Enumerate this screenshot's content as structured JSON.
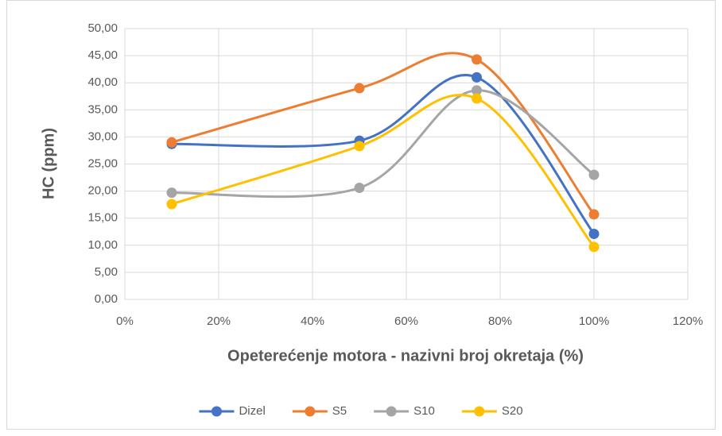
{
  "chart_data": {
    "type": "scatter",
    "x_label": "Opeterećenje motora - nazivni broj okretaja (%)",
    "y_label": "HC (ppm)",
    "x": [
      10,
      50,
      75,
      100
    ],
    "series": [
      {
        "name": "Dizel",
        "color": "#4472c4",
        "values": [
          28.7,
          29.3,
          41.0,
          12.1
        ]
      },
      {
        "name": "S5",
        "color": "#ed7d31",
        "values": [
          29.0,
          39.0,
          44.3,
          15.7
        ]
      },
      {
        "name": "S10",
        "color": "#a5a5a5",
        "values": [
          19.7,
          20.6,
          38.6,
          23.0
        ]
      },
      {
        "name": "S20",
        "color": "#ffc000",
        "values": [
          17.6,
          28.3,
          37.1,
          9.7
        ]
      }
    ],
    "smooth": true,
    "xlim": [
      0,
      120
    ],
    "xticks": [
      {
        "value": 0,
        "label": "0%"
      },
      {
        "value": 20,
        "label": "20%"
      },
      {
        "value": 40,
        "label": "40%"
      },
      {
        "value": 60,
        "label": "60%"
      },
      {
        "value": 80,
        "label": "80%"
      },
      {
        "value": 100,
        "label": "100%"
      },
      {
        "value": 120,
        "label": "120%"
      }
    ],
    "ylim": [
      0,
      50
    ],
    "yticks": [
      {
        "value": 0,
        "label": "0,00"
      },
      {
        "value": 5,
        "label": "5,00"
      },
      {
        "value": 10,
        "label": "10,00"
      },
      {
        "value": 15,
        "label": "15,00"
      },
      {
        "value": 20,
        "label": "20,00"
      },
      {
        "value": 25,
        "label": "25,00"
      },
      {
        "value": 30,
        "label": "30,00"
      },
      {
        "value": 35,
        "label": "35,00"
      },
      {
        "value": 40,
        "label": "40,00"
      },
      {
        "value": 45,
        "label": "45,00"
      },
      {
        "value": 50,
        "label": "50,00"
      }
    ],
    "grid": true,
    "legend": "bottom"
  }
}
